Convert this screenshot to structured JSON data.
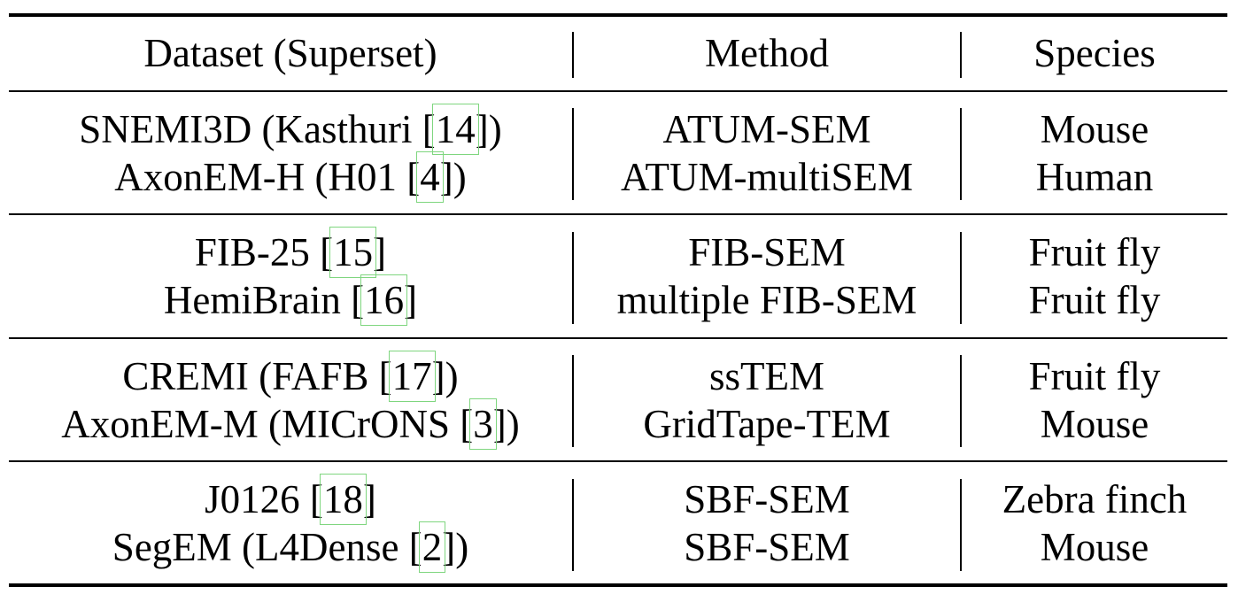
{
  "header": {
    "dataset": "Dataset (Superset)",
    "method": "Method",
    "species": "Species"
  },
  "groups": [
    {
      "rows": [
        {
          "dataset_pre": "SNEMI3D (Kasthuri [",
          "dataset_cite": "14",
          "dataset_post": "])",
          "method": "ATUM-SEM",
          "species": "Mouse"
        },
        {
          "dataset_pre": "AxonEM-H (H01 [",
          "dataset_cite": "4",
          "dataset_post": "])",
          "method": "ATUM-multiSEM",
          "species": "Human"
        }
      ]
    },
    {
      "rows": [
        {
          "dataset_pre": "FIB-25 [",
          "dataset_cite": "15",
          "dataset_post": "]",
          "method": "FIB-SEM",
          "species": "Fruit fly"
        },
        {
          "dataset_pre": "HemiBrain [",
          "dataset_cite": "16",
          "dataset_post": "]",
          "method": "multiple FIB-SEM",
          "species": "Fruit fly"
        }
      ]
    },
    {
      "rows": [
        {
          "dataset_pre": "CREMI (FAFB [",
          "dataset_cite": "17",
          "dataset_post": "])",
          "method": "ssTEM",
          "species": "Fruit fly"
        },
        {
          "dataset_pre": "AxonEM-M (MICrONS [",
          "dataset_cite": "3",
          "dataset_post": "])",
          "method": "GridTape-TEM",
          "species": "Mouse"
        }
      ]
    },
    {
      "rows": [
        {
          "dataset_pre": "J0126 [",
          "dataset_cite": "18",
          "dataset_post": "]",
          "method": "SBF-SEM",
          "species": "Zebra finch"
        },
        {
          "dataset_pre": "SegEM (L4Dense [",
          "dataset_cite": "2",
          "dataset_post": "])",
          "method": "SBF-SEM",
          "species": "Mouse"
        }
      ]
    }
  ]
}
